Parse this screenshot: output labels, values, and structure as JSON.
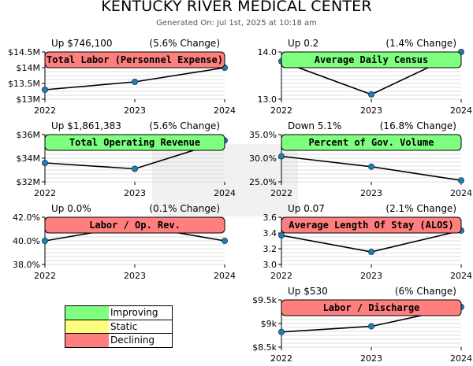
{
  "header": {
    "title": "KENTUCKY RIVER MEDICAL CENTER",
    "subtitle": "Generated On: Jul 1st, 2025 at 10:18 am"
  },
  "colors": {
    "improving": "#7fff7f",
    "static": "#ffff7f",
    "declining": "#ff7f7f",
    "line": "#000000",
    "point": "#1f7fb0",
    "grid": "#c0c0c0"
  },
  "legend": {
    "items": [
      {
        "label": "Improving",
        "status": "improving"
      },
      {
        "label": "Static",
        "status": "static"
      },
      {
        "label": "Declining",
        "status": "declining"
      }
    ]
  },
  "chart_data": [
    {
      "type": "line",
      "title": "Total Labor (Personnel Expense)",
      "status": "declining",
      "change_text": "Up $746,100",
      "pct_text": "(5.6% Change)",
      "x": [
        "2022",
        "2023",
        "2024"
      ],
      "values": [
        13.3,
        13.55,
        14.0
      ],
      "ylim": [
        13.0,
        14.5
      ],
      "ticks": [
        "$13M",
        "$13.5M",
        "$14M",
        "$14.5M"
      ],
      "tick_values": [
        13.0,
        13.5,
        14.0,
        14.5
      ],
      "grid": true
    },
    {
      "type": "line",
      "title": "Average Daily Census",
      "status": "improving",
      "change_text": "Up 0.2",
      "pct_text": "(1.4% Change)",
      "x": [
        "2022",
        "2023",
        "2024"
      ],
      "values": [
        13.8,
        13.1,
        14.0
      ],
      "ylim": [
        13.0,
        14.0
      ],
      "ticks": [
        "13.0",
        "14.0"
      ],
      "tick_values": [
        13.0,
        14.0
      ],
      "grid": true
    },
    {
      "type": "line",
      "title": "Total Operating Revenue",
      "status": "improving",
      "change_text": "Up $1,861,383",
      "pct_text": "(5.6% Change)",
      "x": [
        "2022",
        "2023",
        "2024"
      ],
      "values": [
        33.6,
        33.1,
        35.5
      ],
      "ylim": [
        32,
        36
      ],
      "ticks": [
        "$32M",
        "$34M",
        "$36M"
      ],
      "tick_values": [
        32,
        34,
        36
      ],
      "grid": true
    },
    {
      "type": "line",
      "title": "Percent of Gov. Volume",
      "status": "improving",
      "change_text": "Down 5.1%",
      "pct_text": "(16.8% Change)",
      "x": [
        "2022",
        "2023",
        "2024"
      ],
      "values": [
        30.4,
        28.2,
        25.3
      ],
      "ylim": [
        25.0,
        35.0
      ],
      "ticks": [
        "25.0%",
        "30.0%",
        "35.0%"
      ],
      "tick_values": [
        25.0,
        30.0,
        35.0
      ],
      "grid": true
    },
    {
      "type": "line",
      "title": "Labor / Op. Rev.",
      "status": "declining",
      "change_text": "Up 0.0%",
      "pct_text": "(0.1% Change)",
      "x": [
        "2022",
        "2023",
        "2024"
      ],
      "values": [
        40.0,
        41.3,
        40.0
      ],
      "ylim": [
        38.0,
        42.0
      ],
      "ticks": [
        "38.0%",
        "40.0%",
        "42.0%"
      ],
      "tick_values": [
        38.0,
        40.0,
        42.0
      ],
      "grid": true
    },
    {
      "type": "line",
      "title": "Average Length Of Stay (ALOS)",
      "status": "declining",
      "change_text": "Up 0.07",
      "pct_text": "(2.1% Change)",
      "x": [
        "2022",
        "2023",
        "2024"
      ],
      "values": [
        3.37,
        3.16,
        3.43
      ],
      "ylim": [
        3.0,
        3.6
      ],
      "ticks": [
        "3.0",
        "3.2",
        "3.4",
        "3.6"
      ],
      "tick_values": [
        3.0,
        3.2,
        3.4,
        3.6
      ],
      "grid": true
    },
    {
      "type": "line",
      "title": "Labor / Discharge",
      "status": "declining",
      "change_text": "Up $530",
      "pct_text": "(6% Change)",
      "x": [
        "2022",
        "2023",
        "2024"
      ],
      "values": [
        8.82,
        8.94,
        9.35
      ],
      "ylim": [
        8.5,
        9.5
      ],
      "ticks": [
        "$8.5k",
        "$9k",
        "$9.5k"
      ],
      "tick_values": [
        8.5,
        9.0,
        9.5
      ],
      "grid": true
    }
  ]
}
